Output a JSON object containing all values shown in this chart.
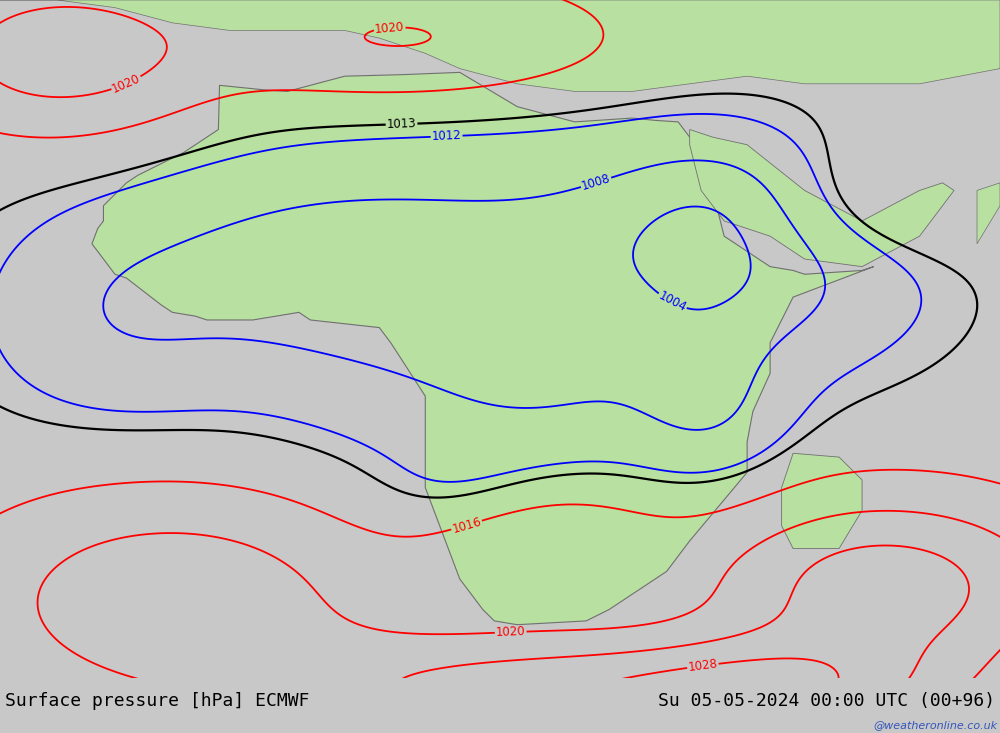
{
  "title_left": "Surface pressure [hPa] ECMWF",
  "title_right": "Su 05-05-2024 00:00 UTC (00+96)",
  "watermark": "@weatheronline.co.uk",
  "background_color": "#c8c8c8",
  "land_color": "#b8e0a0",
  "ocean_color": "#c8c8c8",
  "lake_color": "#aac8d8",
  "border_color": "#909090",
  "coast_color": "#707070",
  "fig_width": 10.0,
  "fig_height": 7.33,
  "dpi": 100,
  "lon_min": -25,
  "lon_max": 62,
  "lat_min": -42,
  "lat_max": 47,
  "title_fontsize": 13,
  "label_fontsize": 8.5,
  "contour_lw": 1.3,
  "contour_lw_black": 1.6
}
